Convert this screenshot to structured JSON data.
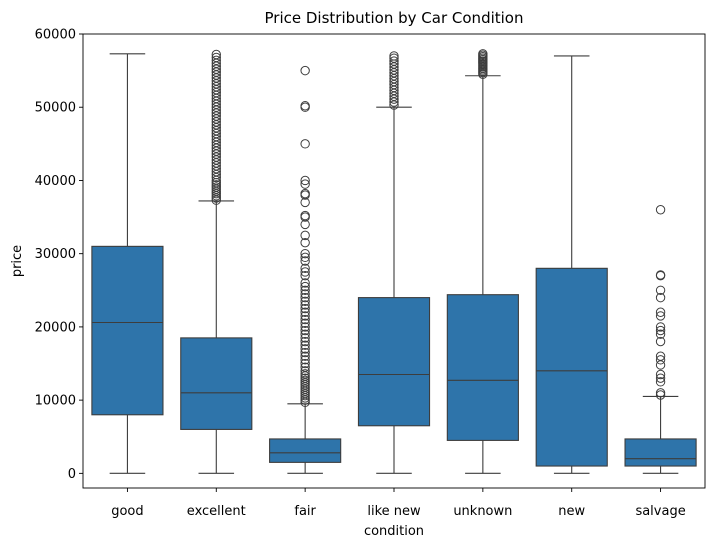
{
  "chart_data": {
    "type": "boxplot",
    "title": "Price Distribution by Car Condition",
    "xlabel": "condition",
    "ylabel": "price",
    "ylim": [
      -2000,
      60000
    ],
    "yticks": [
      0,
      10000,
      20000,
      30000,
      40000,
      50000,
      60000
    ],
    "grid": false,
    "box_color": "#2e74aa",
    "line_color": "#3d3d3d",
    "categories": [
      "good",
      "excellent",
      "fair",
      "like new",
      "unknown",
      "new",
      "salvage"
    ],
    "boxes": [
      {
        "category": "good",
        "whisker_low": 0,
        "q1": 8000,
        "median": 20600,
        "q3": 31000,
        "whisker_high": 57300,
        "outliers": []
      },
      {
        "category": "excellent",
        "whisker_low": 0,
        "q1": 6000,
        "median": 11000,
        "q3": 18500,
        "whisker_high": 37200,
        "outliers": [
          37300,
          37600,
          37900,
          38200,
          38500,
          38800,
          39100,
          39400,
          39700,
          40000,
          40400,
          40800,
          41200,
          41600,
          42000,
          42400,
          42800,
          43200,
          43600,
          44000,
          44400,
          44800,
          45200,
          45600,
          46000,
          46400,
          46800,
          47200,
          47600,
          48000,
          48400,
          48800,
          49200,
          49600,
          50000,
          50400,
          50800,
          51200,
          51600,
          52000,
          52400,
          52800,
          53200,
          53600,
          54000,
          54400,
          54800,
          55200,
          55600,
          56000,
          56400,
          56800,
          57200
        ]
      },
      {
        "category": "fair",
        "whisker_low": 0,
        "q1": 1500,
        "median": 2800,
        "q3": 4700,
        "whisker_high": 9500,
        "outliers": [
          9700,
          10000,
          10300,
          10600,
          10900,
          11200,
          11500,
          11800,
          12100,
          12400,
          12700,
          13000,
          13300,
          13600,
          14000,
          14500,
          15000,
          15500,
          16000,
          16500,
          17000,
          17500,
          18000,
          18500,
          19000,
          19500,
          20000,
          20500,
          21000,
          21500,
          22000,
          22500,
          23000,
          23500,
          24000,
          24500,
          25000,
          25500,
          26000,
          27000,
          27500,
          28000,
          29000,
          29500,
          30000,
          31500,
          32500,
          34000,
          35000,
          35200,
          37000,
          38000,
          38200,
          39500,
          40000,
          45000,
          50000,
          50200,
          55000
        ]
      },
      {
        "category": "like new",
        "whisker_low": 0,
        "q1": 6500,
        "median": 13500,
        "q3": 24000,
        "whisker_high": 50000,
        "outliers": [
          50300,
          50700,
          51100,
          51500,
          51900,
          52300,
          52700,
          53100,
          53500,
          53900,
          54300,
          54700,
          55100,
          55500,
          55900,
          56300,
          56700,
          57000
        ]
      },
      {
        "category": "unknown",
        "whisker_low": 0,
        "q1": 4500,
        "median": 12700,
        "q3": 24400,
        "whisker_high": 54300,
        "outliers": [
          54500,
          54700,
          54900,
          55100,
          55300,
          55500,
          55700,
          55900,
          56100,
          56300,
          56500,
          56700,
          56900,
          57100,
          57300
        ]
      },
      {
        "category": "new",
        "whisker_low": 0,
        "q1": 1000,
        "median": 14000,
        "q3": 28000,
        "whisker_high": 57000,
        "outliers": []
      },
      {
        "category": "salvage",
        "whisker_low": 0,
        "q1": 1000,
        "median": 2000,
        "q3": 4700,
        "whisker_high": 10500,
        "outliers": [
          10700,
          11000,
          12500,
          13000,
          13500,
          14800,
          15500,
          16000,
          18000,
          19000,
          19500,
          20000,
          21500,
          22000,
          24000,
          25000,
          27000,
          27100,
          36000
        ]
      }
    ]
  }
}
